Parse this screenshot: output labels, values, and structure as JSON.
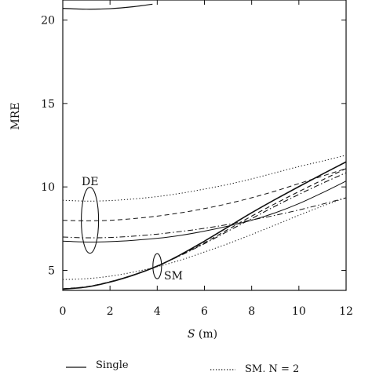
{
  "chart_data": {
    "type": "line",
    "xlabel_var": "S",
    "xlabel_unit": " (m)",
    "ylabel": "MRE",
    "xlim": [
      0,
      12
    ],
    "ylim": [
      3.8,
      21.2
    ],
    "xticks": [
      "0",
      "2",
      "4",
      "6",
      "8",
      "10",
      "12"
    ],
    "yticks": [
      "5",
      "10",
      "15",
      "20"
    ],
    "grid": false,
    "annotations": [
      {
        "text": "DE",
        "x": 1.15,
        "y": 8.0
      },
      {
        "text": "SM",
        "x": 4.0,
        "y": 5.25
      }
    ],
    "legend_entries": [
      {
        "label": "Single",
        "style": "solid"
      },
      {
        "label": "SM, N = 2",
        "style": "dotted"
      }
    ],
    "series": [
      {
        "style": "solid",
        "width": 1.2,
        "x": [
          0,
          1,
          2,
          3,
          3.8
        ],
        "y": [
          20.7,
          20.65,
          20.68,
          20.8,
          20.95
        ]
      },
      {
        "style": "solid",
        "width": 1.0,
        "x": [
          0,
          1,
          2,
          3,
          4,
          5,
          6,
          7,
          8,
          9,
          10,
          11,
          12
        ],
        "y": [
          6.75,
          6.7,
          6.72,
          6.8,
          6.92,
          7.1,
          7.35,
          7.65,
          8.0,
          8.45,
          9.0,
          9.65,
          10.35
        ]
      },
      {
        "style": "dashdot",
        "width": 1.0,
        "x": [
          0,
          1,
          2,
          3,
          4,
          5,
          6,
          7,
          8,
          9,
          10,
          11,
          12
        ],
        "y": [
          7.0,
          6.95,
          6.97,
          7.05,
          7.17,
          7.33,
          7.52,
          7.75,
          8.02,
          8.3,
          8.62,
          8.97,
          9.35
        ]
      },
      {
        "style": "dashed",
        "width": 1.0,
        "x": [
          0,
          1,
          2,
          3,
          4,
          5,
          6,
          7,
          8,
          9,
          10,
          11,
          12
        ],
        "y": [
          8.0,
          7.97,
          8.0,
          8.1,
          8.25,
          8.45,
          8.7,
          9.0,
          9.35,
          9.75,
          10.2,
          10.65,
          11.1
        ]
      },
      {
        "style": "dotted",
        "width": 1.0,
        "x": [
          0,
          1,
          2,
          3,
          4,
          5,
          6,
          7,
          8,
          9,
          10,
          11,
          12
        ],
        "y": [
          9.2,
          9.15,
          9.18,
          9.28,
          9.42,
          9.62,
          9.87,
          10.15,
          10.48,
          10.85,
          11.22,
          11.55,
          11.9
        ]
      },
      {
        "style": "dotted",
        "width": 1.0,
        "x": [
          0,
          1,
          2,
          3,
          4,
          5,
          6,
          7,
          8,
          9,
          10,
          11,
          12
        ],
        "y": [
          4.45,
          4.5,
          4.65,
          4.9,
          5.22,
          5.62,
          6.1,
          6.6,
          7.15,
          7.72,
          8.3,
          8.85,
          9.35
        ]
      },
      {
        "style": "solid",
        "width": 1.6,
        "x": [
          0,
          1,
          2,
          3,
          4,
          5,
          6,
          7,
          8,
          9,
          10,
          11,
          12
        ],
        "y": [
          3.88,
          4.0,
          4.3,
          4.72,
          5.25,
          5.95,
          6.75,
          7.6,
          8.45,
          9.25,
          10.02,
          10.77,
          11.5
        ]
      },
      {
        "style": "dashed",
        "width": 1.1,
        "x": [
          0,
          1,
          2,
          3,
          4,
          5,
          6,
          7,
          8,
          9,
          10,
          11,
          12
        ],
        "y": [
          3.9,
          4.02,
          4.32,
          4.73,
          5.27,
          5.92,
          6.65,
          7.45,
          8.25,
          9.0,
          9.72,
          10.42,
          11.1
        ]
      },
      {
        "style": "dashdot",
        "width": 1.1,
        "x": [
          0,
          1,
          2,
          3,
          4,
          5,
          6,
          7,
          8,
          9,
          10,
          11,
          12
        ],
        "y": [
          3.89,
          4.01,
          4.31,
          4.72,
          5.26,
          5.9,
          6.6,
          7.35,
          8.1,
          8.85,
          9.55,
          10.22,
          10.85
        ]
      }
    ]
  }
}
